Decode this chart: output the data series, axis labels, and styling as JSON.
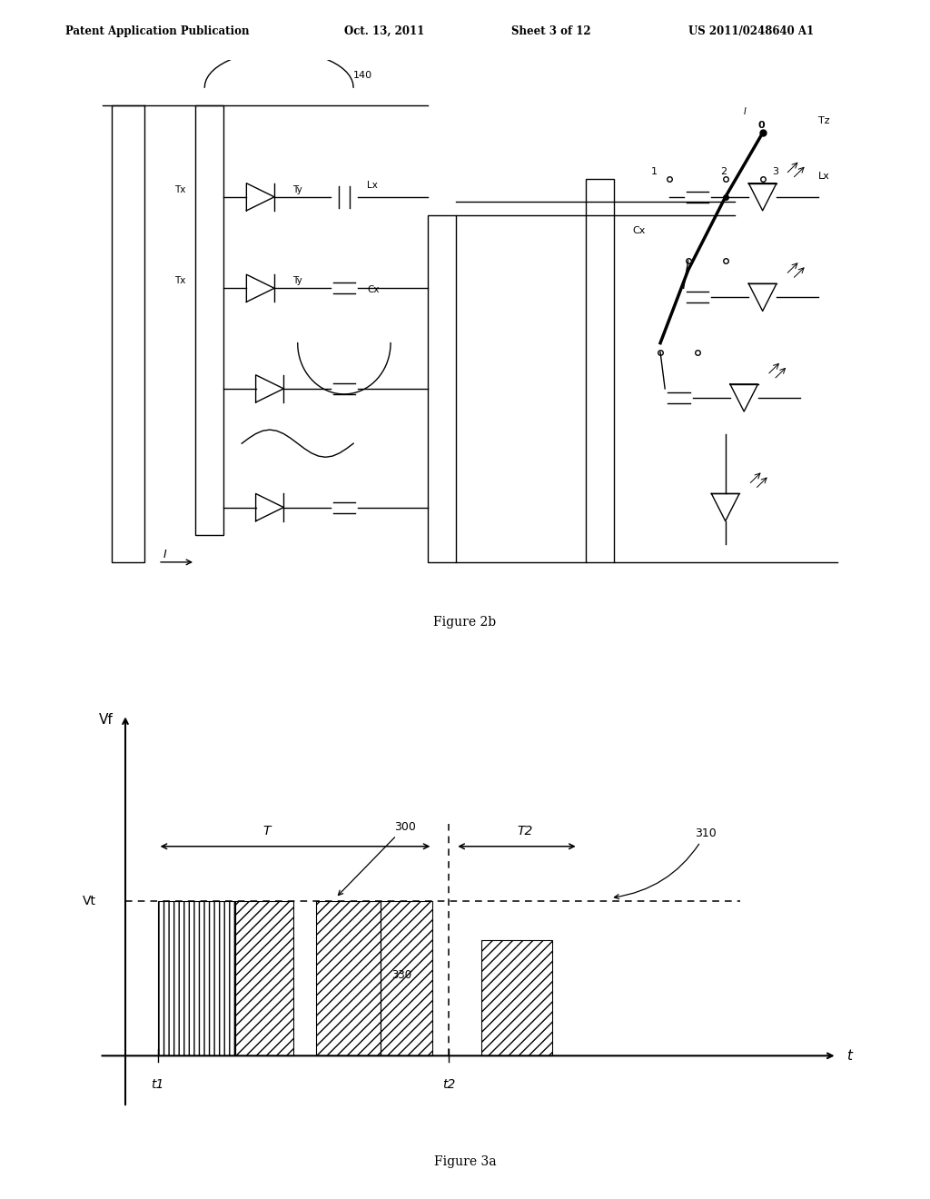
{
  "page_width": 10.24,
  "page_height": 13.2,
  "bg_color": "#ffffff",
  "header_text1": "Patent Application Publication",
  "header_text2": "Oct. 13, 2011",
  "header_text3": "Sheet 3 of 12",
  "header_text4": "US 2011/0248640 A1",
  "figure2b_label": "Figure 2b",
  "figure3a_label": "Figure 3a",
  "label_140": "140",
  "label_Tx": "Tx",
  "label_Ty": "Ty",
  "label_Lx": "Lx",
  "label_Cx": "Cx",
  "label_Tz": "Tz",
  "label_0": "0",
  "label_1": "1",
  "label_2": "2",
  "label_3": "3",
  "label_I": "I",
  "vf_label": "Vf",
  "vt_label": "Vt",
  "t_label": "t",
  "t1_label": "t1",
  "t2_label": "t2",
  "T_label": "T",
  "T2_label": "T2",
  "label_300": "300",
  "label_310": "310",
  "label_330": "330"
}
